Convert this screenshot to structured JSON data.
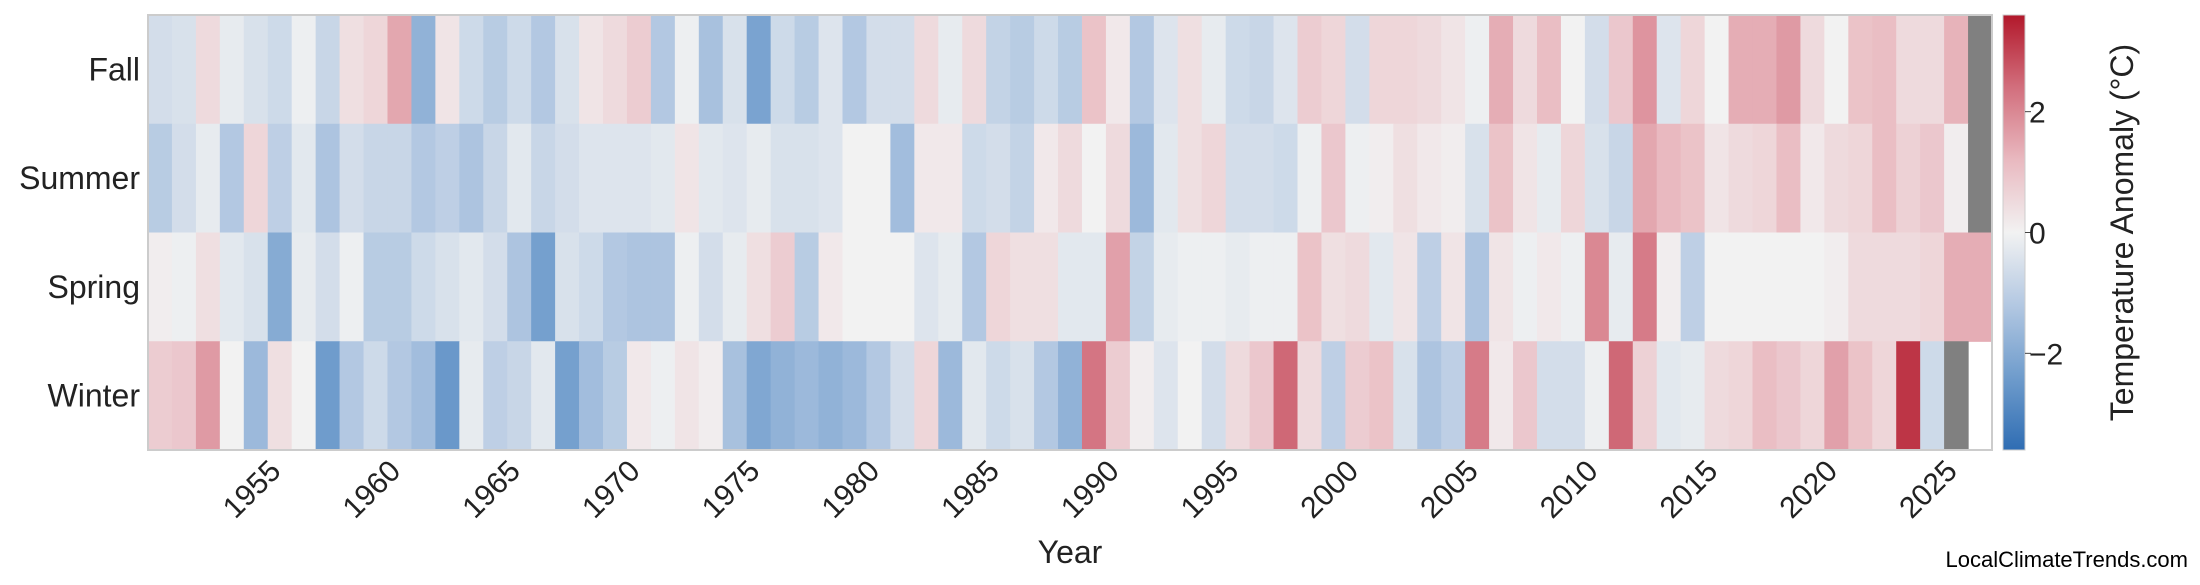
{
  "chart_data": {
    "type": "heatmap",
    "xlabel": "Year",
    "ylabel": "",
    "colorbar": {
      "label": "Temperature Anomaly (°C)",
      "ticks": [
        -2,
        0,
        2
      ],
      "range": [
        -3.6,
        3.6
      ],
      "colors": [
        "#2f6db3",
        "#6f9ccc",
        "#b3c8e2",
        "#f2f2f2",
        "#e9b9c0",
        "#d26f7d",
        "#b2182b"
      ]
    },
    "missing_color": "#808080",
    "x_start": 1951,
    "x_ticks": [
      1955,
      1960,
      1965,
      1970,
      1975,
      1980,
      1985,
      1990,
      1995,
      2000,
      2005,
      2010,
      2015,
      2020,
      2025
    ],
    "rows": [
      "Fall",
      "Summer",
      "Spring",
      "Winter"
    ],
    "values": [
      [
        -0.6,
        -0.5,
        0.5,
        -0.2,
        -0.5,
        -0.7,
        -0.1,
        -0.8,
        0.4,
        0.6,
        1.5,
        -1.8,
        0.3,
        -0.7,
        -1.1,
        -0.7,
        -1.2,
        -0.5,
        0.3,
        0.5,
        0.8,
        -1.2,
        -0.1,
        -1.4,
        -0.5,
        -2.2,
        -0.7,
        -1.1,
        -0.4,
        -1.2,
        -0.6,
        -0.6,
        0.5,
        -0.2,
        0.5,
        -0.9,
        -1.1,
        -0.7,
        -1.1,
        1.0,
        0.2,
        -1.2,
        -0.4,
        0.4,
        -0.2,
        -0.7,
        -0.8,
        -0.4,
        0.8,
        0.6,
        -0.6,
        0.6,
        0.6,
        0.5,
        0.3,
        -0.1,
        1.4,
        0.5,
        1.1,
        0.0,
        -0.6,
        0.9,
        1.8,
        -0.4,
        0.6,
        0.0,
        1.4,
        1.4,
        1.7,
        0.5,
        0.0,
        1.0,
        1.1,
        0.5,
        0.5,
        1.3,
        null
      ],
      [
        -1.1,
        -0.6,
        -0.2,
        -1.2,
        0.6,
        -1.0,
        -0.3,
        -1.3,
        -0.6,
        -0.8,
        -0.8,
        -1.2,
        -1.0,
        -1.3,
        -0.8,
        -0.3,
        -0.8,
        -0.6,
        -0.4,
        -0.4,
        -0.4,
        -0.3,
        0.3,
        -0.3,
        -0.4,
        -0.2,
        -0.5,
        -0.5,
        -0.4,
        0.0,
        0.0,
        -1.5,
        0.2,
        0.2,
        -0.7,
        -0.6,
        -0.9,
        0.2,
        0.5,
        0.0,
        0.5,
        -1.6,
        -0.3,
        0.4,
        0.6,
        -0.6,
        -0.6,
        -0.7,
        -0.1,
        0.9,
        -0.1,
        0.1,
        0.4,
        0.2,
        0.1,
        -0.5,
        1.0,
        0.3,
        -0.2,
        0.6,
        -0.5,
        -0.8,
        1.5,
        1.2,
        1.0,
        0.3,
        0.5,
        0.6,
        1.1,
        0.2,
        0.5,
        0.6,
        1.1,
        0.7,
        0.9,
        0.1,
        null
      ],
      [
        0.1,
        -0.1,
        0.4,
        -0.3,
        -0.5,
        -2.0,
        -0.2,
        -0.6,
        -0.1,
        -1.1,
        -1.1,
        -0.7,
        -0.5,
        -0.3,
        -0.6,
        -1.3,
        -2.3,
        -0.5,
        -0.7,
        -1.2,
        -1.3,
        -1.3,
        -0.1,
        -0.6,
        -0.2,
        0.4,
        0.8,
        -1.1,
        0.2,
        0.0,
        0.0,
        0.0,
        -0.4,
        -0.2,
        -1.2,
        0.6,
        0.4,
        0.4,
        -0.3,
        -0.3,
        1.6,
        -0.9,
        -0.2,
        -0.1,
        -0.1,
        -0.2,
        -0.1,
        -0.1,
        1.0,
        0.4,
        0.5,
        -0.3,
        0.3,
        -1.0,
        0.3,
        -1.3,
        0.3,
        -0.1,
        0.2,
        -0.1,
        2.0,
        -0.2,
        2.2,
        0.1,
        -1.0,
        0.0,
        0.0,
        0.0,
        0.0,
        0.0,
        0.1,
        0.5,
        0.5,
        0.5,
        0.6,
        1.4,
        1.4
      ],
      [
        0.8,
        0.9,
        1.7,
        0.0,
        -1.6,
        0.4,
        0.0,
        -2.4,
        -1.2,
        -0.7,
        -1.2,
        -1.5,
        -2.5,
        -0.2,
        -1.0,
        -0.8,
        -0.3,
        -2.3,
        -1.5,
        -1.1,
        0.2,
        -0.1,
        0.3,
        0.1,
        -1.4,
        -2.1,
        -1.8,
        -1.6,
        -1.8,
        -1.6,
        -1.2,
        -0.6,
        0.6,
        -1.6,
        -0.3,
        -0.7,
        -0.5,
        -1.2,
        -1.8,
        2.3,
        0.8,
        0.1,
        -0.4,
        0.0,
        -0.6,
        0.5,
        0.9,
        2.5,
        0.5,
        -1.0,
        0.8,
        1.0,
        -0.5,
        -1.3,
        -1.0,
        2.2,
        0.2,
        0.9,
        -0.6,
        -0.6,
        -0.1,
        2.5,
        0.7,
        -0.3,
        -0.2,
        0.5,
        0.6,
        1.1,
        0.9,
        0.6,
        1.6,
        1.0,
        0.6,
        3.2,
        -0.7,
        null
      ]
    ],
    "legend": "colorbar-right",
    "grid": false
  },
  "credit": "LocalClimateTrends.com"
}
